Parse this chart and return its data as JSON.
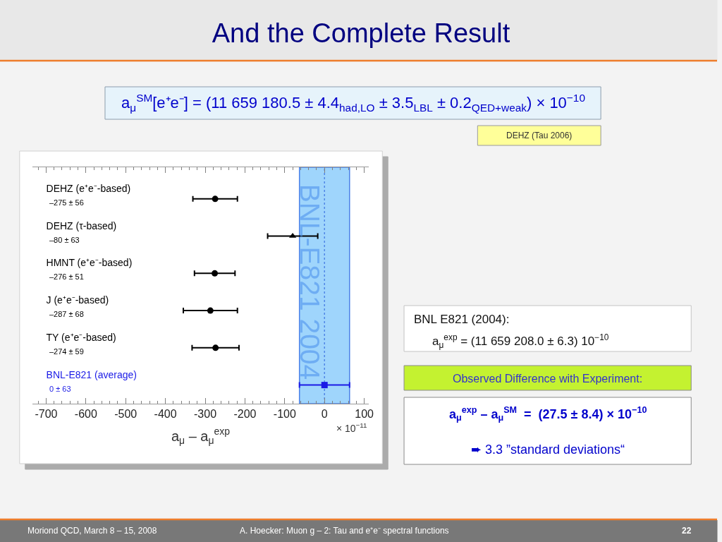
{
  "chart_data": {
    "type": "scatter",
    "title": "And the Complete Result",
    "xlabel": "a$_{μ}$ – a$_{μ}$$^{exp}$",
    "orientation": "horizontal",
    "categories": [
      "DEHZ (e⁺e⁻-based)",
      "DEHZ (τ-based)",
      "HMNT (e⁺e⁻-based)",
      "J (e⁺e⁻-based)",
      "TY (e⁺e⁻-based)",
      "BNL-E821 (average)"
    ],
    "series": [
      {
        "color": "#000000",
        "marker": "circle",
        "values": [
          -275,
          null,
          -276,
          -287,
          -274,
          null
        ],
        "errors": [
          56,
          null,
          51,
          68,
          59,
          null
        ]
      },
      {
        "color": "#000000",
        "marker": "triangle",
        "values": [
          null,
          -80,
          null,
          null,
          null,
          null
        ],
        "errors": [
          null,
          63,
          null,
          null,
          null,
          null
        ]
      },
      {
        "color": "#1a1ae6",
        "marker": "square",
        "values": [
          null,
          null,
          null,
          null,
          null,
          0
        ],
        "errors": [
          null,
          null,
          null,
          null,
          null,
          63
        ]
      }
    ],
    "xlim": [
      -735,
      112
    ],
    "xticks": [
      {
        "value": -720,
        "label": null
      },
      -700,
      {
        "value": -680,
        "label": null
      },
      {
        "value": -660,
        "label": null
      },
      {
        "value": -640,
        "label": null
      },
      {
        "value": -620,
        "label": null
      },
      -600,
      {
        "value": -580,
        "label": null
      },
      {
        "value": -560,
        "label": null
      },
      {
        "value": -540,
        "label": null
      },
      {
        "value": -520,
        "label": null
      },
      -500,
      {
        "value": -480,
        "label": null
      },
      {
        "value": -460,
        "label": null
      },
      {
        "value": -440,
        "label": null
      },
      {
        "value": -420,
        "label": null
      },
      -400,
      {
        "value": -380,
        "label": null
      },
      {
        "value": -360,
        "label": null
      },
      {
        "value": -340,
        "label": null
      },
      {
        "value": -320,
        "label": null
      },
      -300,
      {
        "value": -280,
        "label": null
      },
      {
        "value": -260,
        "label": null
      },
      {
        "value": -240,
        "label": null
      },
      {
        "value": -220,
        "label": null
      },
      -200,
      {
        "value": -180,
        "label": null
      },
      {
        "value": -160,
        "label": null
      },
      {
        "value": -140,
        "label": null
      },
      {
        "value": -120,
        "label": null
      },
      -100,
      {
        "value": -80,
        "label": null
      },
      {
        "value": -60,
        "label": null
      },
      {
        "value": -40,
        "label": null
      },
      {
        "value": -20,
        "label": null
      },
      0,
      {
        "value": 20,
        "label": null
      },
      {
        "value": 40,
        "label": null
      },
      {
        "value": 60,
        "label": null
      },
      {
        "value": 80,
        "label": null
      },
      100
    ],
    "bands": [
      {
        "axis": "x",
        "from": -63,
        "to": 63,
        "label": "BNL-E821 2004",
        "color": "#9fd5fc"
      }
    ],
    "ref_lines": [
      {
        "axis": "x",
        "value": 0,
        "line_style": "dotted",
        "color": "#4f86e6"
      }
    ],
    "grid": false,
    "annotations": [
      "a$_{μ}$$^{SM}$[e⁺e⁻] = (11 659 180.5 ± 4.4$_{had,LO}$ ± 3.5$_{LBL}$ ± 0.2$_{QED+weak}$) × 10$^{−10}$",
      "DEHZ (Tau 2006)",
      "BNL E821 (2004):",
      "a$_{μ}$$^{exp}$ = (11 659 208.0 ± 6.3) 10$^{−10}$",
      "Observed Difference with Experiment:",
      "a$_{μ}$$^{exp}$ – a$_{μ}$$^{SM}$  =  (27.5 ± 8.4) × 10$^{−10}$",
      "➨ 3.3 ”standard deviations“",
      "× 10$^{−11}$",
      "Moriond QCD, March 8 – 15, 2008",
      "A. Hoecker: Muon g – 2: Tau and e⁺e⁻ spectral functions",
      "22",
      "–275 ± 56",
      "–80 ± 63",
      "–276 ± 51",
      "–287 ± 68",
      "–274 ± 59",
      "0 ± 63"
    ]
  }
}
